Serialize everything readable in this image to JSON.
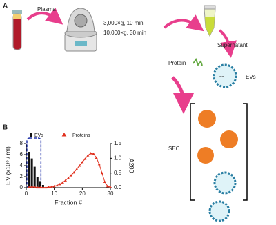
{
  "panel_a": {
    "label": "A",
    "plasma": "Plasma",
    "spin_1": "3,000×g, 10 min",
    "spin_2": "10,000×g, 30 min",
    "supernatant": "Supernatant",
    "protein": "Protein",
    "evs": "EVs",
    "sec": "SEC"
  },
  "panel_b": {
    "label": "B"
  },
  "chart_data": {
    "type": "bar-line",
    "xlabel": "Fraction #",
    "ylabel": "EV (x10⁹ / ml)",
    "y2label": "A280",
    "x": [
      1,
      2,
      3,
      4,
      5,
      6,
      7,
      8,
      9,
      10,
      11,
      12,
      13,
      14,
      15,
      16,
      17,
      18,
      19,
      20,
      21,
      22,
      23,
      24,
      25,
      26,
      27,
      28,
      29,
      30
    ],
    "series": [
      {
        "name": "EVs",
        "color": "#111111",
        "values": [
          6.5,
          5.3,
          3.8,
          2.0,
          1.2,
          0.5,
          null,
          null,
          null,
          null,
          null,
          null,
          null,
          null,
          null,
          null,
          null,
          null,
          null,
          null,
          null,
          null,
          null,
          null,
          null,
          null,
          null,
          null,
          null,
          null
        ]
      },
      {
        "name": "Proteins",
        "color": "#e0301e",
        "axis": "y2",
        "values": [
          0.02,
          0.03,
          0.02,
          0.01,
          0.01,
          0.01,
          0.01,
          0.02,
          0.03,
          0.05,
          0.08,
          0.12,
          0.18,
          0.25,
          0.33,
          0.42,
          0.52,
          0.63,
          0.75,
          0.87,
          0.98,
          1.1,
          1.17,
          1.15,
          1.02,
          0.8,
          0.5,
          0.2,
          0.05,
          0.02
        ]
      }
    ],
    "xlim": [
      0,
      30
    ],
    "xticks": [
      0,
      10,
      20,
      30
    ],
    "ylim": [
      0,
      8
    ],
    "yticks": [
      0,
      2,
      4,
      6,
      8
    ],
    "y2lim": [
      0,
      1.5
    ],
    "y2ticks": [
      {
        "value": 0,
        "label": "0.0"
      },
      0.5,
      {
        "value": 1,
        "label": "1.0"
      },
      1.5
    ]
  }
}
